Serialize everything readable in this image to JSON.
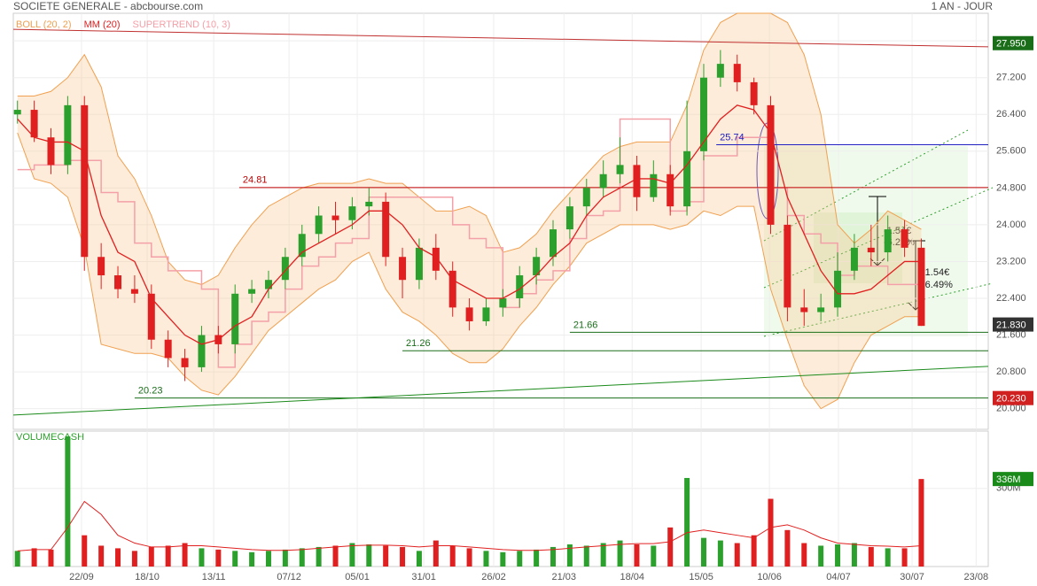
{
  "chart_data": {
    "type": "candlestick",
    "title": "SOCIETE GENERALE - abcbourse.com",
    "period": "1 AN - JOUR",
    "legend": [
      {
        "name": "BOLL (20, 2)",
        "color": "#f0a050"
      },
      {
        "name": "MM (20)",
        "color": "#e02020"
      },
      {
        "name": "SUPERTREND (10, 3)",
        "color": "#f4a0a8"
      }
    ],
    "up_color": "#2ca02c",
    "down_color": "#e02020",
    "xlim": [
      0,
      233
    ],
    "xticks": [
      {
        "value": 16.3,
        "label": "22/09"
      },
      {
        "value": 32.0,
        "label": "18/10"
      },
      {
        "value": 47.9,
        "label": "13/11"
      },
      {
        "value": 65.9,
        "label": "07/12"
      },
      {
        "value": 82.2,
        "label": "05/01"
      },
      {
        "value": 98.1,
        "label": "31/01"
      },
      {
        "value": 114.8,
        "label": "26/02"
      },
      {
        "value": 131.6,
        "label": "21/03"
      },
      {
        "value": 147.9,
        "label": "18/04"
      },
      {
        "value": 164.4,
        "label": "15/05"
      },
      {
        "value": 180.7,
        "label": "10/06"
      },
      {
        "value": 197.2,
        "label": "04/07"
      },
      {
        "value": 214.8,
        "label": "30/07"
      },
      {
        "value": 230.1,
        "label": "23/08"
      }
    ],
    "ylim": [
      19.55,
      28.6
    ],
    "yticks": [
      {
        "value": 20.0,
        "label": "20.000"
      },
      {
        "value": 20.8,
        "label": "20.800"
      },
      {
        "value": 21.6,
        "label": "21.600"
      },
      {
        "value": 22.4,
        "label": "22.400"
      },
      {
        "value": 23.2,
        "label": "23.200"
      },
      {
        "value": 24.0,
        "label": "24.000"
      },
      {
        "value": 24.8,
        "label": "24.800"
      },
      {
        "value": 25.6,
        "label": "25.600"
      },
      {
        "value": 26.4,
        "label": "26.400"
      },
      {
        "value": 27.2,
        "label": "27.200"
      },
      {
        "value": 28.0,
        "label": "28.000"
      }
    ],
    "grid": true,
    "x": [
      1,
      5,
      9,
      13,
      17,
      21,
      25,
      29,
      33,
      37,
      41,
      45,
      49,
      53,
      57,
      61,
      65,
      69,
      73,
      77,
      81,
      85,
      89,
      93,
      97,
      101,
      105,
      109,
      113,
      117,
      121,
      125,
      129,
      133,
      137,
      141,
      145,
      149,
      153,
      157,
      161,
      165,
      169,
      173,
      177,
      181,
      185,
      189,
      193,
      197,
      201,
      205,
      209,
      213,
      217
    ],
    "open": [
      26.4,
      26.5,
      25.9,
      25.3,
      26.6,
      23.3,
      22.9,
      22.6,
      22.5,
      21.5,
      21.1,
      20.9,
      21.6,
      21.4,
      22.5,
      22.6,
      22.8,
      23.3,
      23.8,
      24.2,
      24.1,
      24.4,
      24.5,
      23.3,
      22.8,
      23.5,
      23.0,
      22.2,
      21.9,
      22.2,
      22.4,
      22.9,
      23.3,
      23.9,
      24.4,
      24.8,
      25.1,
      25.3,
      24.6,
      25.1,
      24.4,
      25.6,
      27.2,
      27.5,
      27.1,
      26.6,
      24.0,
      22.2,
      22.1,
      22.2,
      23.0,
      23.5,
      23.4,
      23.9,
      23.5
    ],
    "high": [
      26.7,
      26.7,
      26.1,
      26.8,
      26.8,
      23.6,
      23.1,
      22.9,
      22.7,
      21.7,
      21.3,
      21.8,
      21.8,
      22.7,
      22.8,
      23.0,
      23.5,
      24.0,
      24.4,
      24.5,
      24.6,
      24.8,
      24.7,
      23.5,
      23.7,
      23.8,
      23.2,
      22.4,
      22.4,
      22.6,
      23.1,
      23.5,
      24.1,
      24.6,
      25.0,
      25.4,
      25.9,
      25.5,
      25.4,
      25.3,
      26.7,
      27.5,
      27.8,
      27.7,
      27.2,
      26.8,
      24.2,
      22.6,
      22.5,
      23.4,
      23.8,
      24.0,
      24.2,
      24.1,
      23.7
    ],
    "low": [
      26.2,
      25.8,
      25.1,
      25.1,
      23.0,
      22.6,
      22.4,
      22.3,
      21.3,
      20.9,
      20.6,
      20.8,
      21.2,
      21.2,
      22.3,
      22.4,
      22.6,
      23.1,
      23.6,
      23.8,
      23.9,
      24.2,
      23.1,
      22.4,
      22.6,
      22.8,
      22.0,
      21.7,
      21.8,
      22.0,
      22.2,
      22.7,
      23.1,
      23.7,
      24.2,
      24.6,
      24.9,
      24.3,
      24.5,
      24.2,
      24.2,
      25.4,
      27.0,
      26.9,
      26.4,
      23.8,
      21.9,
      21.8,
      21.9,
      22.0,
      22.8,
      23.1,
      23.2,
      23.3,
      21.8
    ],
    "close": [
      26.5,
      25.9,
      25.3,
      26.6,
      23.3,
      22.9,
      22.6,
      22.5,
      21.5,
      21.1,
      20.9,
      21.6,
      21.4,
      22.5,
      22.6,
      22.8,
      23.3,
      23.8,
      24.2,
      24.1,
      24.4,
      24.5,
      23.3,
      22.8,
      23.5,
      23.0,
      22.2,
      21.9,
      22.2,
      22.4,
      22.9,
      23.3,
      23.9,
      24.4,
      24.8,
      25.1,
      25.3,
      24.6,
      25.1,
      24.4,
      25.6,
      27.2,
      27.5,
      27.1,
      26.6,
      24.0,
      22.2,
      22.1,
      22.2,
      23.0,
      23.5,
      23.4,
      23.9,
      23.5,
      21.8
    ],
    "boll_upper": [
      26.8,
      26.8,
      26.9,
      27.2,
      27.7,
      27.0,
      25.5,
      25.0,
      24.2,
      23.2,
      22.8,
      22.7,
      22.9,
      23.5,
      24.0,
      24.4,
      24.6,
      24.8,
      24.9,
      24.9,
      24.9,
      25.0,
      24.9,
      24.9,
      24.6,
      24.3,
      24.3,
      24.4,
      24.2,
      23.4,
      23.5,
      23.8,
      24.3,
      24.7,
      25.1,
      25.5,
      25.7,
      25.8,
      25.8,
      25.8,
      26.6,
      27.8,
      28.4,
      28.6,
      28.6,
      28.6,
      28.4,
      27.7,
      26.4,
      24.0,
      23.6,
      23.9,
      24.3,
      24.1,
      23.9
    ],
    "boll_lower": [
      26.0,
      25.0,
      24.9,
      24.6,
      23.5,
      21.4,
      21.3,
      21.2,
      21.2,
      21.1,
      20.7,
      20.4,
      20.3,
      20.7,
      21.2,
      21.7,
      22.0,
      22.3,
      22.6,
      22.8,
      23.2,
      23.4,
      22.6,
      22.1,
      21.9,
      21.6,
      21.2,
      21.0,
      21.0,
      21.3,
      21.8,
      22.2,
      22.7,
      23.1,
      23.6,
      23.8,
      24.0,
      24.0,
      24.0,
      23.9,
      24.0,
      24.3,
      24.2,
      24.4,
      24.4,
      22.6,
      21.5,
      20.5,
      20.0,
      20.2,
      21.0,
      21.6,
      21.8,
      22.0,
      22.0
    ],
    "mm": [
      26.3,
      25.9,
      25.8,
      25.8,
      25.6,
      24.2,
      23.4,
      23.2,
      22.4,
      22.0,
      21.6,
      21.4,
      21.5,
      21.8,
      22.0,
      22.6,
      23.0,
      23.4,
      23.6,
      23.8,
      24.0,
      24.3,
      24.3,
      24.0,
      23.5,
      23.3,
      22.8,
      22.6,
      22.4,
      22.4,
      22.6,
      22.9,
      23.3,
      23.6,
      24.2,
      24.6,
      24.8,
      25.0,
      25.0,
      24.9,
      25.3,
      25.8,
      26.3,
      26.6,
      26.5,
      26.0,
      24.6,
      23.8,
      23.0,
      22.5,
      22.5,
      22.6,
      22.9,
      23.2,
      23.2
    ],
    "supertrend": [
      25.2,
      25.2,
      25.3,
      25.3,
      25.4,
      25.4,
      24.7,
      24.5,
      23.6,
      23.3,
      23.0,
      23.0,
      22.6,
      20.9,
      21.4,
      21.9,
      22.1,
      22.6,
      23.1,
      23.3,
      23.6,
      23.7,
      24.6,
      24.6,
      24.6,
      24.6,
      24.6,
      24.0,
      23.7,
      23.5,
      22.2,
      22.5,
      22.8,
      23.0,
      23.7,
      24.2,
      24.3,
      26.3,
      26.3,
      26.3,
      24.3,
      24.5,
      25.5,
      25.5,
      25.9,
      25.9,
      24.8,
      24.2,
      23.8,
      23.6,
      22.9,
      23.1,
      23.1,
      22.7,
      22.7
    ],
    "levels": [
      {
        "value": 24.81,
        "from": 54,
        "color": "#c00000"
      },
      {
        "value": 25.74,
        "from": 168,
        "color": "#2020c0"
      },
      {
        "value": 21.66,
        "from": 133,
        "color": "#1a6e1a"
      },
      {
        "value": 21.26,
        "from": 93,
        "color": "#1a6e1a"
      },
      {
        "value": 20.23,
        "from": 29,
        "color": "#1a6e1a"
      }
    ],
    "trendlines": [
      {
        "from": [
          0,
          28.25
        ],
        "to": [
          233,
          27.87
        ],
        "color": "#c03030"
      },
      {
        "from": [
          0,
          19.86
        ],
        "to": [
          233,
          20.92
        ],
        "color": "#1a8a1a"
      }
    ],
    "price_tags": [
      {
        "value": 27.95,
        "label": "27.950",
        "color": "#1a6e1a"
      },
      {
        "value": 21.83,
        "label": "21.830",
        "color": "#333333"
      },
      {
        "value": 20.23,
        "label": "20.230",
        "color": "#d02020"
      }
    ],
    "annotations": [
      [
        "-1.54€",
        "-6.25%"
      ],
      [
        "-1.54€",
        "-6.49%"
      ]
    ],
    "volume": {
      "title": "VOLUMECASH",
      "ylim": [
        0,
        520
      ],
      "yticks": [
        {
          "value": 300,
          "label": "300M"
        }
      ],
      "values": [
        60,
        70,
        65,
        500,
        120,
        80,
        70,
        60,
        75,
        80,
        90,
        70,
        65,
        60,
        55,
        60,
        65,
        70,
        75,
        80,
        90,
        85,
        80,
        75,
        60,
        100,
        80,
        70,
        60,
        55,
        60,
        65,
        75,
        85,
        80,
        90,
        100,
        85,
        80,
        150,
        340,
        110,
        100,
        90,
        120,
        260,
        140,
        90,
        80,
        85,
        90,
        75,
        70,
        70,
        336
      ],
      "ma": [
        60,
        65,
        65,
        150,
        250,
        200,
        120,
        90,
        75,
        75,
        80,
        80,
        75,
        70,
        65,
        62,
        62,
        65,
        70,
        75,
        80,
        82,
        82,
        80,
        75,
        80,
        80,
        75,
        70,
        65,
        62,
        62,
        65,
        70,
        75,
        80,
        85,
        88,
        88,
        95,
        130,
        140,
        130,
        120,
        110,
        150,
        160,
        140,
        110,
        90,
        85,
        80,
        78,
        75,
        80
      ],
      "tag": {
        "value": 336,
        "label": "336M",
        "color": "#1a8a1a"
      }
    }
  }
}
